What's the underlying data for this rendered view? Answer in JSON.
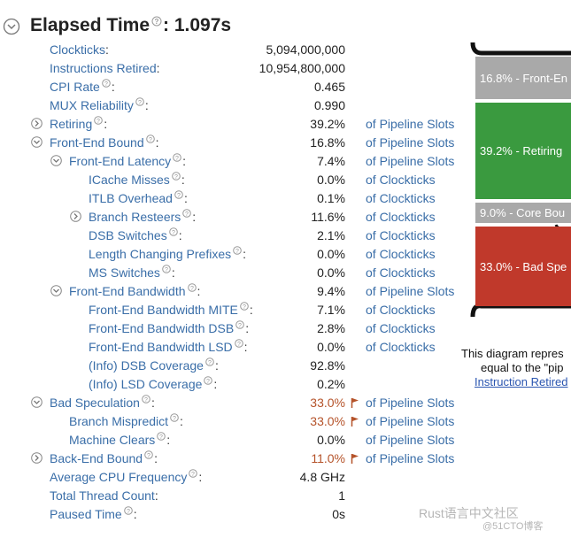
{
  "header": {
    "title": "Elapsed Time",
    "value": "1.097s"
  },
  "separator": ":",
  "metrics": [
    {
      "label": "Clockticks",
      "value": "5,094,000,000",
      "help": false
    },
    {
      "label": "Instructions Retired",
      "value": "10,954,800,000",
      "help": false
    },
    {
      "label": "CPI Rate",
      "value": "0.465"
    },
    {
      "label": "MUX Reliability",
      "value": "0.990"
    },
    {
      "label": "Retiring",
      "value": "39.2%",
      "unit": "of Pipeline Slots",
      "expanded": false
    },
    {
      "label": "Front-End Bound",
      "value": "16.8%",
      "unit": "of Pipeline Slots",
      "expanded": true,
      "children": [
        {
          "label": "Front-End Latency",
          "value": "7.4%",
          "unit": "of Pipeline Slots",
          "expanded": true,
          "children": [
            {
              "label": "ICache Misses",
              "value": "0.0%",
              "unit": "of Clockticks"
            },
            {
              "label": "ITLB Overhead",
              "value": "0.1%",
              "unit": "of Clockticks"
            },
            {
              "label": "Branch Resteers",
              "value": "11.6%",
              "unit": "of Clockticks",
              "expanded": false
            },
            {
              "label": "DSB Switches",
              "value": "2.1%",
              "unit": "of Clockticks"
            },
            {
              "label": "Length Changing Prefixes",
              "value": "0.0%",
              "unit": "of Clockticks"
            },
            {
              "label": "MS Switches",
              "value": "0.0%",
              "unit": "of Clockticks"
            }
          ]
        },
        {
          "label": "Front-End Bandwidth",
          "value": "9.4%",
          "unit": "of Pipeline Slots",
          "expanded": true,
          "children": [
            {
              "label": "Front-End Bandwidth MITE",
              "value": "7.1%",
              "unit": "of Clockticks"
            },
            {
              "label": "Front-End Bandwidth DSB",
              "value": "2.8%",
              "unit": "of Clockticks"
            },
            {
              "label": "Front-End Bandwidth LSD",
              "value": "0.0%",
              "unit": "of Clockticks"
            },
            {
              "label": "(Info) DSB Coverage",
              "value": "92.8%"
            },
            {
              "label": "(Info) LSD Coverage",
              "value": "0.2%"
            }
          ]
        }
      ]
    },
    {
      "label": "Bad Speculation",
      "value": "33.0%",
      "unit": "of Pipeline Slots",
      "flagged": true,
      "expanded": true,
      "children": [
        {
          "label": "Branch Mispredict",
          "value": "33.0%",
          "unit": "of Pipeline Slots",
          "flagged": true
        },
        {
          "label": "Machine Clears",
          "value": "0.0%",
          "unit": "of Pipeline Slots"
        }
      ]
    },
    {
      "label": "Back-End Bound",
      "value": "11.0%",
      "unit": "of Pipeline Slots",
      "flagged": true,
      "expanded": false
    },
    {
      "label": "Average CPU Frequency",
      "value": "4.8 GHz"
    },
    {
      "label": "Total Thread Count",
      "value": "1",
      "help": false
    },
    {
      "label": "Paused Time",
      "value": "0s"
    }
  ],
  "diagram": {
    "blocks": [
      {
        "label": "16.8% - Front-En",
        "color": "#a9a9a9"
      },
      {
        "label": "39.2% - Retiring",
        "color": "#3a9a3f"
      },
      {
        "label": "9.0% - Core Bou",
        "color": "#a9a9a9"
      },
      {
        "label": "33.0% - Bad Spe",
        "color": "#c0392b"
      }
    ],
    "caption": [
      "This diagram repres",
      "equal to the \"pip"
    ],
    "link": "Instruction Retired"
  },
  "watermark": [
    "Rust语言中文社区",
    "@51CTO博客"
  ]
}
